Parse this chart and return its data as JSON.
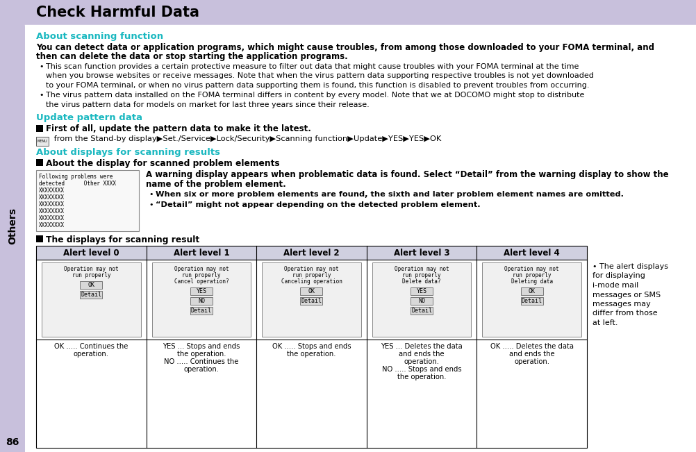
{
  "title": "Check Harmful Data",
  "header_bg": "#c8c0dc",
  "main_bg": "#ffffff",
  "sidebar_color": "#c8c0dc",
  "teal_color": "#1ab8c0",
  "page_number": "86",
  "section1_heading": "About scanning function",
  "section1_bold_line1": "You can detect data or application programs, which might cause troubles, from among those downloaded to your FOMA terminal, and",
  "section1_bold_line2": "then can delete the data or stop starting the application programs.",
  "section1_bullet1_lines": [
    "This scan function provides a certain protective measure to filter out data that might cause troubles with your FOMA terminal at the time",
    "when you browse websites or receive messages. Note that when the virus pattern data supporting respective troubles is not yet downloaded",
    "to your FOMA terminal, or when no virus pattern data supporting them is found, this function is disabled to prevent troubles from occurring."
  ],
  "section1_bullet2_lines": [
    "The virus pattern data installed on the FOMA terminal differs in content by every model. Note that we at DOCOMO might stop to distribute",
    "the virus pattern data for models on market for last three years since their release."
  ],
  "section2_heading": "Update pattern data",
  "section2_bold": "First of all, update the pattern data to make it the latest.",
  "section2_steps": " from the Stand-by display▶Set./Service▶Lock/Security▶Scanning function▶Update▶YES▶YES▶OK",
  "section3_heading": "About displays for scanning results",
  "section3_subheading": "About the display for scanned problem elements",
  "section3_warning_lines": [
    "A warning display appears when problematic data is found. Select “Detail” from the warning display to show the",
    "name of the problem element."
  ],
  "section3_bullet1": "When six or more problem elements are found, the sixth and later problem element names are omitted.",
  "section3_bullet2": "“Detail” might not appear depending on the detected problem element.",
  "table_heading": "The displays for scanning result",
  "alert_levels": [
    "Alert level 0",
    "Alert level 1",
    "Alert level 2",
    "Alert level 3",
    "Alert level 4"
  ],
  "alert_descriptions": [
    "Operation may not\nrun properly",
    "Operation may not\nrun properly\nCancel operation?",
    "Operation may not\nrun properly\nCanceling operation",
    "Operation may not\nrun properly\nDelete data?",
    "Operation may not\nrun properly\nDeleting data"
  ],
  "alert_buttons": [
    [
      "OK",
      "Detail"
    ],
    [
      "YES",
      "NO",
      "Detail"
    ],
    [
      "OK",
      "Detail"
    ],
    [
      "YES",
      "NO",
      "Detail"
    ],
    [
      "OK",
      "Detail"
    ]
  ],
  "alert_action_lines": [
    [
      "OK ..... Continues the",
      "         operation."
    ],
    [
      "YES ... Stops and ends",
      "           the operation.",
      "NO ..... Continues the",
      "           operation."
    ],
    [
      "OK ..... Stops and ends",
      "           the operation."
    ],
    [
      "YES ... Deletes the data",
      "           and ends the",
      "           operation.",
      "NO ..... Stops and ends",
      "           the operation."
    ],
    [
      "OK ..... Deletes the data",
      "           and ends the",
      "           operation."
    ]
  ],
  "side_note_lines": [
    "• The alert displays",
    "for displaying",
    "i-mode mail",
    "messages or SMS",
    "messages may",
    "differ from those",
    "at left."
  ],
  "phone_screen_lines": [
    "Following problems were",
    "detected      Other XXXX",
    "XXXXXXXX",
    "XXXXXXXX",
    "XXXXXXXX",
    "XXXXXXXX",
    "XXXXXXXX",
    "XXXXXXXX"
  ]
}
